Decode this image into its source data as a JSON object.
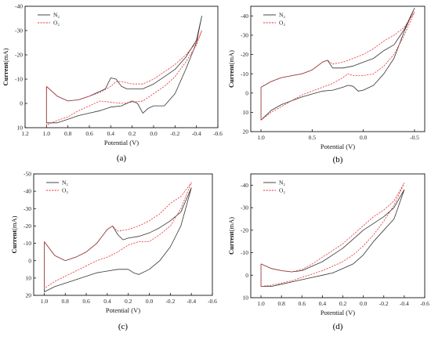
{
  "colors": {
    "N2": "#333333",
    "O2": "#e8353a",
    "axis": "#111111"
  },
  "chart_data": [
    {
      "type": "line",
      "panel_label": "(a)",
      "xlabel": "Potential (V)",
      "ylabel_bold": "Current",
      "ylabel_unit": "(mA)",
      "xlim": [
        1.2,
        -0.6
      ],
      "ylim": [
        -40,
        10
      ],
      "xticks": [
        1.2,
        1.0,
        0.8,
        0.6,
        0.4,
        0.2,
        0.0,
        -0.2,
        -0.4,
        -0.6
      ],
      "xtick_labels": [
        "1.2",
        "1.0",
        "0.8",
        "0.6",
        "0.4",
        "0.2",
        "0.0",
        "-0.2",
        "-0.4",
        "-0.6"
      ],
      "yticks": [
        -40,
        -30,
        -20,
        -10,
        0,
        10
      ],
      "ytick_labels": [
        "-40",
        "-30",
        "-20",
        "-10",
        "0",
        "10"
      ],
      "legend": [
        "N₂",
        "O₂"
      ],
      "legend_position": "top-left",
      "series": [
        {
          "name": "N₂",
          "style": "solid",
          "x": [
            1.0,
            0.9,
            0.8,
            0.7,
            0.6,
            0.5,
            0.45,
            0.4,
            0.35,
            0.3,
            0.25,
            0.2,
            0.1,
            0.0,
            -0.1,
            -0.2,
            -0.3,
            -0.4,
            -0.45,
            -0.4,
            -0.3,
            -0.2,
            -0.1,
            0.0,
            0.05,
            0.1,
            0.15,
            0.2,
            0.3,
            0.4,
            0.5,
            0.6,
            0.7,
            0.8,
            0.9,
            1.0,
            1.0
          ],
          "y": [
            -7,
            -3,
            -1,
            -1.5,
            -3,
            -5,
            -6,
            -10.5,
            -10,
            -7,
            -6,
            -6,
            -6,
            -8,
            -11,
            -14,
            -19,
            -26,
            -36,
            -25,
            -14,
            -4,
            1,
            1,
            2,
            4,
            0,
            -1,
            1,
            1.5,
            3,
            4,
            5,
            6.5,
            8,
            8,
            -7
          ]
        },
        {
          "name": "O₂",
          "style": "dashed",
          "x": [
            1.0,
            0.9,
            0.8,
            0.7,
            0.6,
            0.5,
            0.4,
            0.35,
            0.3,
            0.2,
            0.1,
            0.0,
            -0.1,
            -0.2,
            -0.3,
            -0.4,
            -0.45,
            -0.4,
            -0.3,
            -0.2,
            -0.1,
            0.0,
            0.1,
            0.2,
            0.3,
            0.4,
            0.5,
            0.6,
            0.7,
            0.8,
            0.9,
            1.0,
            1.0
          ],
          "y": [
            -7,
            -3,
            -1,
            -1.5,
            -3,
            -4.5,
            -7,
            -9,
            -9,
            -8,
            -8,
            -10,
            -13,
            -16,
            -20,
            -25,
            -30,
            -24,
            -17,
            -11,
            -7,
            -4,
            -1,
            -0.5,
            0,
            -0.5,
            -1,
            1,
            3,
            5.5,
            7,
            9,
            -7
          ]
        }
      ]
    },
    {
      "type": "line",
      "panel_label": "(b)",
      "xlabel": "Potential (V)",
      "ylabel_bold": "Current",
      "ylabel_unit": "(mA)",
      "xlim": [
        1.1,
        -0.6
      ],
      "ylim": [
        -45,
        20
      ],
      "xticks": [
        1.0,
        0.5,
        0.0,
        -0.5
      ],
      "xtick_labels": [
        "1.0",
        "0.5",
        "0.0",
        "-0.5"
      ],
      "yticks": [
        -40,
        -30,
        -20,
        -10,
        0,
        10,
        20
      ],
      "ytick_labels": [
        "-40",
        "-30",
        "-20",
        "-10",
        "0",
        "10",
        "20"
      ],
      "legend": [
        "N₂",
        "O₂"
      ],
      "legend_position": "top-left",
      "series": [
        {
          "name": "N₂",
          "style": "solid",
          "x": [
            1.0,
            0.9,
            0.8,
            0.7,
            0.6,
            0.5,
            0.4,
            0.35,
            0.3,
            0.2,
            0.1,
            0.0,
            -0.1,
            -0.2,
            -0.3,
            -0.4,
            -0.5,
            -0.4,
            -0.3,
            -0.2,
            -0.1,
            0.0,
            0.05,
            0.1,
            0.15,
            0.2,
            0.3,
            0.4,
            0.5,
            0.6,
            0.7,
            0.8,
            0.9,
            1.0,
            1.0
          ],
          "y": [
            -3,
            -6,
            -8,
            -9,
            -10,
            -12,
            -16,
            -17,
            -13,
            -13,
            -14,
            -16,
            -18,
            -22,
            -25,
            -33,
            -44,
            -32,
            -18,
            -10,
            -4,
            -1.5,
            -1,
            -3.5,
            -4,
            -3,
            -1.5,
            -1,
            0.5,
            2,
            4,
            6,
            9,
            14,
            -3
          ]
        },
        {
          "name": "O₂",
          "style": "dashed",
          "x": [
            1.0,
            0.9,
            0.8,
            0.7,
            0.6,
            0.5,
            0.4,
            0.35,
            0.3,
            0.2,
            0.1,
            0.0,
            -0.1,
            -0.2,
            -0.3,
            -0.4,
            -0.5,
            -0.4,
            -0.3,
            -0.2,
            -0.1,
            0.0,
            0.1,
            0.15,
            0.2,
            0.3,
            0.4,
            0.5,
            0.6,
            0.7,
            0.8,
            0.9,
            1.0,
            1.0
          ],
          "y": [
            -3,
            -6,
            -8,
            -9,
            -10,
            -12,
            -16,
            -17,
            -15,
            -16,
            -18,
            -20,
            -23,
            -27,
            -30,
            -34,
            -42,
            -30,
            -20,
            -14,
            -10,
            -9,
            -9,
            -10,
            -8,
            -5,
            -3,
            -1,
            1,
            4,
            7,
            10,
            14,
            -3
          ]
        }
      ]
    },
    {
      "type": "line",
      "panel_label": "(c)",
      "xlabel": "Potential (V)",
      "ylabel_bold": "Current",
      "ylabel_unit": "(mA)",
      "xlim": [
        1.1,
        -0.6
      ],
      "ylim": [
        -50,
        20
      ],
      "xticks": [
        1.0,
        0.8,
        0.6,
        0.4,
        0.2,
        0.0,
        -0.2,
        -0.4,
        -0.6
      ],
      "xtick_labels": [
        "1.0",
        "0.8",
        "0.6",
        "0.4",
        "0.2",
        "0.0",
        "-0.2",
        "-0.4",
        "-0.6"
      ],
      "yticks": [
        -50,
        -40,
        -30,
        -20,
        -10,
        0,
        10,
        20
      ],
      "ytick_labels": [
        "-50",
        "-40",
        "-30",
        "-20",
        "-10",
        "0",
        "10",
        "20"
      ],
      "legend": [
        "N₂",
        "O₂"
      ],
      "legend_position": "top-left",
      "series": [
        {
          "name": "N₂",
          "style": "solid",
          "x": [
            1.0,
            0.9,
            0.8,
            0.7,
            0.6,
            0.5,
            0.4,
            0.35,
            0.3,
            0.25,
            0.2,
            0.1,
            0.0,
            -0.1,
            -0.2,
            -0.3,
            -0.4,
            -0.3,
            -0.2,
            -0.1,
            0.0,
            0.1,
            0.15,
            0.2,
            0.3,
            0.4,
            0.5,
            0.6,
            0.7,
            0.8,
            0.9,
            1.0,
            1.0
          ],
          "y": [
            -11,
            -3,
            0,
            -2,
            -5,
            -10,
            -18,
            -20,
            -15,
            -12,
            -13,
            -14,
            -16,
            -19,
            -23,
            -28,
            -42,
            -20,
            -8,
            0,
            5,
            8,
            7,
            5,
            5,
            6,
            7,
            9,
            11,
            13,
            15,
            18,
            -11
          ]
        },
        {
          "name": "O₂",
          "style": "dashed",
          "x": [
            1.0,
            0.9,
            0.8,
            0.7,
            0.6,
            0.5,
            0.4,
            0.35,
            0.3,
            0.2,
            0.1,
            0.0,
            -0.1,
            -0.2,
            -0.3,
            -0.4,
            -0.3,
            -0.2,
            -0.1,
            0.0,
            0.1,
            0.2,
            0.3,
            0.4,
            0.5,
            0.6,
            0.7,
            0.8,
            0.9,
            1.0,
            1.0
          ],
          "y": [
            -11,
            -3,
            0,
            -2,
            -5,
            -10,
            -18,
            -20,
            -17,
            -18,
            -20,
            -23,
            -27,
            -33,
            -37,
            -45,
            -30,
            -20,
            -15,
            -11,
            -11,
            -9,
            -5,
            -2,
            0,
            3,
            6,
            9,
            12,
            16,
            -11
          ]
        }
      ]
    },
    {
      "type": "line",
      "panel_label": "(d)",
      "xlabel": "Potential (V)",
      "ylabel_bold": "Current",
      "ylabel_unit": "(mA)",
      "xlim": [
        1.1,
        -0.6
      ],
      "ylim": [
        -45,
        10
      ],
      "xticks": [
        1.0,
        0.8,
        0.6,
        0.4,
        0.2,
        0.0,
        -0.2,
        -0.4,
        -0.6
      ],
      "xtick_labels": [
        "1.0",
        "0.8",
        "0.6",
        "0.4",
        "0.2",
        "0.0",
        "-0.2",
        "-0.4",
        "-0.6"
      ],
      "yticks": [
        -40,
        -30,
        -20,
        -10,
        0,
        10
      ],
      "ytick_labels": [
        "-40",
        "-30",
        "-20",
        "-10",
        "0",
        "10"
      ],
      "legend": [
        "N₂",
        "O₂"
      ],
      "legend_position": "top-left",
      "series": [
        {
          "name": "N₂",
          "style": "solid",
          "x": [
            1.0,
            0.9,
            0.8,
            0.7,
            0.6,
            0.5,
            0.4,
            0.3,
            0.2,
            0.1,
            0.0,
            -0.1,
            -0.2,
            -0.3,
            -0.4,
            -0.3,
            -0.2,
            -0.1,
            0.0,
            0.1,
            0.2,
            0.3,
            0.4,
            0.5,
            0.6,
            0.7,
            0.8,
            0.9,
            1.0,
            1.0
          ],
          "y": [
            -5,
            -3,
            -2,
            -1.5,
            -2,
            -4,
            -6,
            -9,
            -12,
            -16,
            -20,
            -23,
            -26,
            -30,
            -38,
            -25,
            -20,
            -15,
            -9,
            -5,
            -3,
            -1,
            0,
            1,
            2,
            3,
            4,
            5,
            5,
            -5
          ]
        },
        {
          "name": "O₂",
          "style": "dashed",
          "x": [
            1.0,
            0.9,
            0.8,
            0.7,
            0.6,
            0.5,
            0.4,
            0.3,
            0.2,
            0.1,
            0.0,
            -0.1,
            -0.2,
            -0.3,
            -0.4,
            -0.3,
            -0.2,
            -0.1,
            0.0,
            0.1,
            0.2,
            0.3,
            0.4,
            0.5,
            0.6,
            0.7,
            0.8,
            0.9,
            1.0,
            1.0
          ],
          "y": [
            -5,
            -3,
            -2,
            -1.5,
            -2.5,
            -5,
            -8,
            -11,
            -14,
            -18,
            -22,
            -26,
            -29,
            -33,
            -41,
            -31,
            -24,
            -18,
            -13,
            -9,
            -6,
            -4,
            -2,
            -0.5,
            1,
            2.5,
            3.5,
            4.5,
            5,
            -5
          ]
        }
      ]
    }
  ]
}
